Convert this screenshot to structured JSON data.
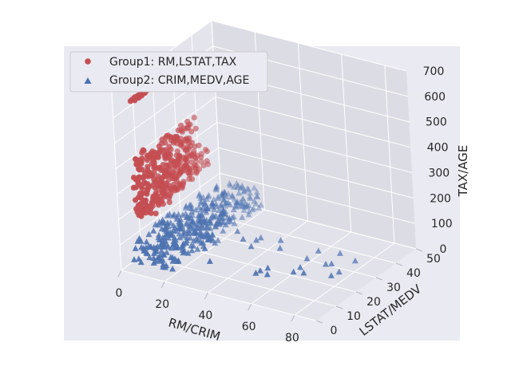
{
  "chart_data": {
    "type": "scatter",
    "projection": "3d",
    "xlabel": "RM/CRIM",
    "ylabel": "LSTAT/MEDV",
    "zlabel": "TAX/AGE",
    "xlim": [
      0,
      90
    ],
    "ylim": [
      0,
      50
    ],
    "zlim": [
      0,
      700
    ],
    "x_ticks": [
      "0",
      "20",
      "40",
      "60",
      "80"
    ],
    "y_ticks": [
      "0",
      "10",
      "20",
      "30",
      "40",
      "50"
    ],
    "z_ticks": [
      "0",
      "100",
      "200",
      "300",
      "400",
      "500",
      "600",
      "700"
    ],
    "grid": true,
    "legend_position": "upper-left",
    "series": [
      {
        "name": "Group1: RM,LSTAT,TAX",
        "marker": "circle",
        "color": "#c44e52",
        "clusters": [
          {
            "x_range": [
              5.5,
              7.5
            ],
            "y_range": [
              2,
              32
            ],
            "z": 666,
            "count": 120
          },
          {
            "x_range": [
              5.0,
              8.5
            ],
            "y_range": [
              2,
              32
            ],
            "z_range": [
              200,
              440
            ],
            "count": 300
          },
          {
            "x_range": [
              4.0,
              8.8
            ],
            "y_range": [
              5,
              38
            ],
            "z_range": [
              185,
              300
            ],
            "count": 60
          }
        ]
      },
      {
        "name": "Group2: CRIM,MEDV,AGE",
        "marker": "triangle",
        "color": "#4c72b0",
        "clusters": [
          {
            "x_range": [
              0,
              20
            ],
            "y_range": [
              5,
              50
            ],
            "z_range": [
              3,
              100
            ],
            "count": 380
          },
          {
            "x_range": [
              20,
              89
            ],
            "y_range": [
              5,
              27
            ],
            "z_range": [
              85,
              100
            ],
            "count": 30
          }
        ]
      }
    ]
  }
}
